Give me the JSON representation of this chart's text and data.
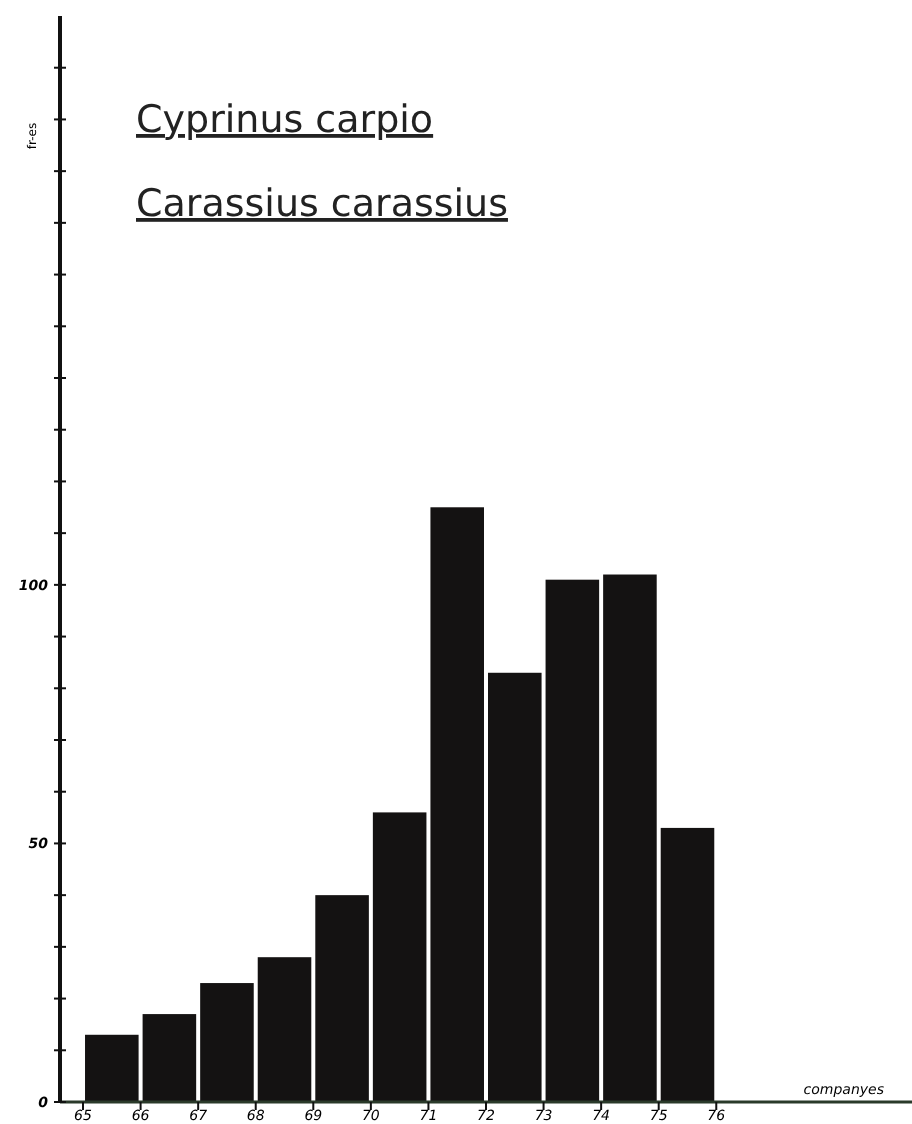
{
  "chart_data": {
    "type": "histogram",
    "title": "Cyprinus carpio",
    "subtitle": "Carassius carassius",
    "xlabel": "companyes",
    "ylabel": "fr-es",
    "bins": [
      65,
      66,
      67,
      68,
      69,
      70,
      71,
      72,
      73,
      74,
      75,
      76
    ],
    "values": [
      13,
      17,
      23,
      28,
      40,
      56,
      115,
      83,
      101,
      102,
      53
    ],
    "color": "#141212",
    "xlim": [
      64.6,
      79.4
    ],
    "xticks": [
      65,
      66,
      67,
      68,
      69,
      70,
      71,
      72,
      73,
      74,
      75,
      76
    ],
    "ylim": [
      0,
      210
    ],
    "yticks": [
      0,
      {
        "value": 10,
        "label": null
      },
      {
        "value": 20,
        "label": null
      },
      {
        "value": 30,
        "label": null
      },
      {
        "value": 40,
        "label": null
      },
      50,
      {
        "value": 60,
        "label": null
      },
      {
        "value": 70,
        "label": null
      },
      {
        "value": 80,
        "label": null
      },
      {
        "value": 90,
        "label": null
      },
      100,
      {
        "value": 110,
        "label": null
      },
      {
        "value": 120,
        "label": null
      },
      {
        "value": 130,
        "label": null
      },
      {
        "value": 140,
        "label": null
      },
      {
        "value": 150,
        "label": null
      },
      {
        "value": 160,
        "label": null
      },
      {
        "value": 170,
        "label": null
      },
      {
        "value": 180,
        "label": null
      },
      {
        "value": 190,
        "label": null
      },
      {
        "value": 200,
        "label": null
      }
    ],
    "grid": false
  }
}
